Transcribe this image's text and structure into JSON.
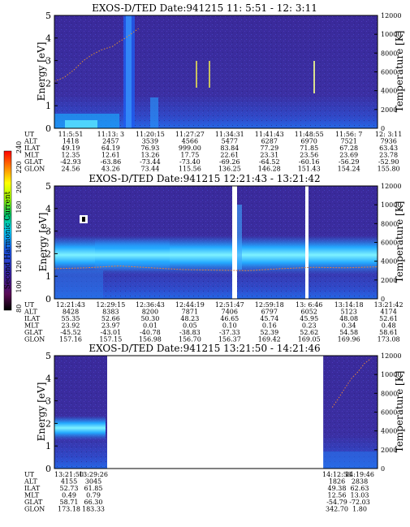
{
  "chart_data": [
    {
      "type": "heatmap",
      "title": "EXOS-D/TED   Date:941215  11: 5:51 - 12: 3:11",
      "ylabel_left": "Energy [eV]",
      "ylabel_right": "Temperature [K]",
      "ylim_left": [
        0,
        5
      ],
      "yticks_left": [
        "0",
        "1",
        "2",
        "3",
        "4",
        "5"
      ],
      "ylim_right": [
        0,
        12000
      ],
      "yticks_right": [
        "0",
        "2000",
        "4000",
        "6000",
        "8000",
        "10000",
        "12000"
      ],
      "data_gaps": [],
      "temperature_trace": [
        [
          0.0,
          5000
        ],
        [
          0.03,
          5400
        ],
        [
          0.06,
          6200
        ],
        [
          0.09,
          7200
        ],
        [
          0.12,
          7900
        ],
        [
          0.15,
          8400
        ],
        [
          0.18,
          8700
        ],
        [
          0.2,
          9200
        ],
        [
          0.22,
          9600
        ],
        [
          0.24,
          10100
        ],
        [
          0.26,
          10600
        ]
      ],
      "table": {
        "row_labels": [
          "UT",
          "ALT",
          "ILAT",
          "MLT",
          "GLAT",
          "GLON"
        ],
        "columns": [
          [
            "11:5:51",
            "1418",
            "49.19",
            "12.35",
            "-42.93",
            "24.56"
          ],
          [
            "11:13: 3",
            "2457",
            "64.19",
            "12.61",
            "-63.86",
            "43.26"
          ],
          [
            "11:20:15",
            "3539",
            "76.93",
            "13.26",
            "-73.44",
            "73.44"
          ],
          [
            "11:27:27",
            "4566",
            "999.00",
            "17.75",
            "-73.40",
            "115.56"
          ],
          [
            "11:34:31",
            "5477",
            "83.84",
            "22.61",
            "-69.26",
            "136.25"
          ],
          [
            "11:41:43",
            "6287",
            "77.29",
            "23.31",
            "-64.52",
            "146.28"
          ],
          [
            "11:48:55",
            "6970",
            "71.85",
            "23.56",
            "-60.16",
            "151.43"
          ],
          [
            "11:56: 7",
            "7521",
            "67.28",
            "23.69",
            "-56.29",
            "154.24"
          ],
          [
            "12: 3:11",
            "7936",
            "63.43",
            "23.78",
            "-52.90",
            "155.80"
          ]
        ]
      }
    },
    {
      "type": "heatmap",
      "title": "EXOS-D/TED   Date:941215  12:21:43 - 13:21:42",
      "ylabel_left": "Energy [eV]",
      "ylabel_right": "Temperature [K]",
      "ylim_left": [
        0,
        5
      ],
      "yticks_left": [
        "0",
        "1",
        "2",
        "3",
        "4",
        "5"
      ],
      "ylim_right": [
        0,
        12000
      ],
      "yticks_right": [
        "0",
        "2000",
        "4000",
        "6000",
        "8000",
        "10000",
        "12000"
      ],
      "data_gaps": [
        [
          0.755,
          0.768
        ],
        [
          0.898,
          0.906
        ]
      ],
      "temperature_trace": [
        [
          0.0,
          3200
        ],
        [
          0.1,
          3300
        ],
        [
          0.2,
          3500
        ],
        [
          0.3,
          3300
        ],
        [
          0.4,
          3100
        ],
        [
          0.5,
          3050
        ],
        [
          0.6,
          3000
        ],
        [
          0.7,
          3200
        ],
        [
          0.8,
          3350
        ],
        [
          0.9,
          3300
        ],
        [
          1.0,
          3400
        ]
      ],
      "table": {
        "row_labels": [
          "UT",
          "ALT",
          "ILAT",
          "MLT",
          "GLAT",
          "GLON"
        ],
        "columns": [
          [
            "12:21:43",
            "8428",
            "55.35",
            "23.92",
            "-45.52",
            "157.16"
          ],
          [
            "12:29:15",
            "8383",
            "52.66",
            "23.97",
            "-43.01",
            "157.15"
          ],
          [
            "12:36:43",
            "8200",
            "50.30",
            "0.01",
            "-40.78",
            "156.98"
          ],
          [
            "12:44:19",
            "7871",
            "48.23",
            "0.05",
            "-38.83",
            "156.70"
          ],
          [
            "12:51:47",
            "7406",
            "46.65",
            "0.10",
            "-37.33",
            "156.37"
          ],
          [
            "12:59:18",
            "6797",
            "45.74",
            "0.16",
            "52.39",
            "169.42"
          ],
          [
            "13: 6:46",
            "6052",
            "45.95",
            "0.23",
            "52.62",
            "169.05"
          ],
          [
            "13:14:18",
            "5123",
            "48.08",
            "0.34",
            "54.58",
            "169.96"
          ],
          [
            "13:21:42",
            "4174",
            "52.61",
            "0.48",
            "58.61",
            "173.08"
          ]
        ]
      }
    },
    {
      "type": "heatmap",
      "title": "EXOS-D/TED   Date:941215  13:21:50 - 14:21:46",
      "ylabel_left": "Energy [eV]",
      "ylabel_right": "Temperature [K]",
      "ylim_left": [
        0,
        5
      ],
      "yticks_left": [
        "0",
        "1",
        "2",
        "3",
        "4",
        "5"
      ],
      "ylim_right": [
        0,
        12000
      ],
      "yticks_right": [
        "0",
        "2000",
        "4000",
        "6000",
        "8000",
        "10000",
        "12000"
      ],
      "data_gaps": [
        [
          0.185,
          0.832
        ]
      ],
      "temperature_trace": [
        [
          0.86,
          6500
        ],
        [
          0.88,
          7500
        ],
        [
          0.9,
          8600
        ],
        [
          0.92,
          9600
        ],
        [
          0.94,
          10300
        ],
        [
          0.96,
          11200
        ],
        [
          0.98,
          11700
        ]
      ],
      "table": {
        "row_labels": [
          "UT",
          "ALT",
          "ILAT",
          "MLT",
          "GLAT",
          "GLON"
        ],
        "columns": [
          [
            "13:21:50",
            "4155",
            "52.73",
            "0.49",
            "58.71",
            "173.18"
          ],
          [
            "13:29:26",
            "3045",
            "61.85",
            "0.79",
            "66.30",
            "183.33"
          ],
          [
            "14:12:58",
            "1826",
            "49.38",
            "12.56",
            "-54.79",
            "342.70"
          ],
          [
            "14:19:46",
            "2838",
            "62.63",
            "13.03",
            "-72.03",
            "1.80"
          ]
        ]
      }
    }
  ],
  "colorbar": {
    "label": "Second Harmonic Current",
    "ticks": [
      "80",
      "100",
      "120",
      "140",
      "160",
      "180",
      "200",
      "220",
      "240"
    ],
    "colors": [
      "#000000",
      "#5a0a55",
      "#3a1f9e",
      "#1a5af0",
      "#00d8ff",
      "#00c060",
      "#a0ff00",
      "#ffff00",
      "#ff8000",
      "#ff0000"
    ]
  }
}
